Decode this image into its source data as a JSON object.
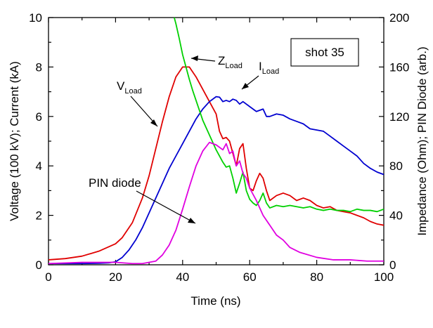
{
  "chart_data": {
    "type": "line",
    "xlabel": "Time (ns)",
    "ylabel": "Voltage (100 kV); Current (kA)",
    "y2label": "Impedance (Ohm); PIN Diode (arb.)",
    "xlim": [
      0,
      100
    ],
    "ylim": [
      0,
      10
    ],
    "y2lim": [
      0,
      200
    ],
    "xticks": [
      "0",
      "20",
      "40",
      "60",
      "80",
      "100"
    ],
    "yticks": [
      "0",
      "2",
      "4",
      "6",
      "8",
      "10"
    ],
    "y2ticks": [
      "0",
      "40",
      "80",
      "120",
      "160",
      "200"
    ],
    "grid": false,
    "annotation_box": "shot 35",
    "series": [
      {
        "name": "V_Load",
        "axis": "left",
        "color": "#e00000",
        "x": [
          0,
          5,
          10,
          15,
          20,
          22,
          25,
          28,
          30,
          32,
          34,
          36,
          38,
          40,
          42,
          44,
          46,
          48,
          50,
          51,
          52,
          53,
          54,
          55,
          56,
          57,
          58,
          59,
          60,
          61,
          62,
          63,
          64,
          65,
          66,
          68,
          70,
          72,
          74,
          76,
          78,
          80,
          82,
          84,
          86,
          88,
          90,
          92,
          94,
          96,
          98,
          100
        ],
        "y": [
          0.2,
          0.25,
          0.35,
          0.55,
          0.85,
          1.1,
          1.7,
          2.7,
          3.6,
          4.7,
          5.8,
          6.8,
          7.6,
          8.0,
          8.0,
          7.6,
          7.1,
          6.6,
          6.1,
          5.4,
          5.1,
          5.15,
          5.0,
          4.5,
          4.0,
          4.7,
          4.9,
          3.9,
          3.1,
          3.0,
          3.4,
          3.7,
          3.5,
          3.0,
          2.6,
          2.8,
          2.9,
          2.8,
          2.6,
          2.7,
          2.6,
          2.4,
          2.3,
          2.35,
          2.2,
          2.15,
          2.1,
          2.0,
          1.9,
          1.75,
          1.65,
          1.6
        ]
      },
      {
        "name": "I_Load",
        "axis": "left",
        "color": "#0000d0",
        "x": [
          0,
          10,
          15,
          18,
          20,
          22,
          24,
          26,
          28,
          30,
          32,
          34,
          36,
          38,
          40,
          42,
          44,
          46,
          48,
          50,
          51,
          52,
          53,
          54,
          55,
          56,
          57,
          58,
          60,
          62,
          64,
          65,
          66,
          68,
          70,
          72,
          74,
          76,
          78,
          80,
          82,
          84,
          86,
          88,
          90,
          92,
          94,
          96,
          98,
          100
        ],
        "y": [
          0.05,
          0.05,
          0.06,
          0.08,
          0.12,
          0.3,
          0.6,
          1.0,
          1.5,
          2.1,
          2.7,
          3.3,
          3.9,
          4.4,
          4.9,
          5.4,
          5.9,
          6.3,
          6.6,
          6.8,
          6.78,
          6.6,
          6.65,
          6.6,
          6.7,
          6.65,
          6.5,
          6.6,
          6.4,
          6.2,
          6.3,
          6.0,
          6.0,
          6.1,
          6.05,
          5.9,
          5.8,
          5.7,
          5.5,
          5.45,
          5.4,
          5.2,
          5.0,
          4.8,
          4.6,
          4.4,
          4.1,
          3.9,
          3.75,
          3.65
        ]
      },
      {
        "name": "Z_Load",
        "axis": "right",
        "color": "#00d000",
        "x": [
          37.5,
          38,
          39,
          40,
          41,
          42,
          43,
          44,
          45,
          46,
          48,
          50,
          52,
          53,
          54,
          55,
          56,
          57,
          58,
          59,
          60,
          61,
          62,
          63,
          64,
          65,
          66,
          68,
          70,
          72,
          74,
          76,
          78,
          80,
          82,
          84,
          86,
          88,
          90,
          92,
          94,
          96,
          98,
          100
        ],
        "y": [
          200,
          195,
          183,
          170,
          160,
          150,
          141,
          133,
          125,
          117,
          105,
          93,
          83,
          79,
          80,
          70,
          58,
          66,
          75,
          60,
          53,
          50,
          48,
          52,
          58,
          50,
          46,
          48,
          47,
          48,
          47,
          46,
          47,
          45,
          44,
          45,
          44,
          44,
          43,
          45,
          44,
          44,
          43,
          45
        ]
      },
      {
        "name": "PIN diode",
        "axis": "right",
        "color": "#e000e0",
        "x": [
          0,
          10,
          20,
          25,
          28,
          30,
          32,
          34,
          36,
          38,
          40,
          42,
          44,
          46,
          48,
          50,
          52,
          53,
          54,
          55,
          56,
          57,
          58,
          59,
          60,
          62,
          64,
          66,
          68,
          70,
          72,
          75,
          80,
          85,
          90,
          95,
          100
        ],
        "y": [
          1,
          2,
          2,
          1,
          1,
          2,
          3,
          8,
          16,
          28,
          45,
          63,
          80,
          92,
          99,
          97,
          93,
          98,
          90,
          92,
          80,
          84,
          74,
          70,
          62,
          52,
          40,
          32,
          24,
          20,
          14,
          10,
          6,
          4,
          4,
          3,
          3
        ]
      }
    ],
    "annotations": [
      {
        "main": "V",
        "sub": "Load"
      },
      {
        "main": "I",
        "sub": "Load"
      },
      {
        "main": "Z",
        "sub": "Load"
      },
      {
        "main": "PIN diode",
        "sub": ""
      }
    ]
  }
}
